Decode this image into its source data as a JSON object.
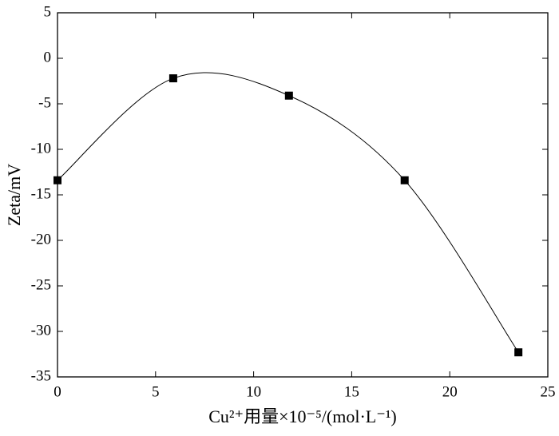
{
  "chart_data": {
    "type": "line",
    "x_label": "Cu²⁺用量×10⁻⁵/(mol·L⁻¹)",
    "y_label": "Zeta/mV",
    "x": [
      0,
      5.9,
      11.8,
      17.7,
      23.5
    ],
    "series": [
      {
        "values": [
          -13.4,
          -2.2,
          -4.1,
          -13.4,
          -32.3
        ],
        "color": "#000000"
      }
    ],
    "smooth": true,
    "marker": "square",
    "xlim": [
      0,
      25
    ],
    "xticks": [
      0,
      5,
      10,
      15,
      20,
      25
    ],
    "ylim": [
      -35,
      5
    ],
    "yticks": [
      5,
      0,
      -5,
      -10,
      -15,
      -20,
      -25,
      -30,
      -35
    ],
    "grid": false
  }
}
